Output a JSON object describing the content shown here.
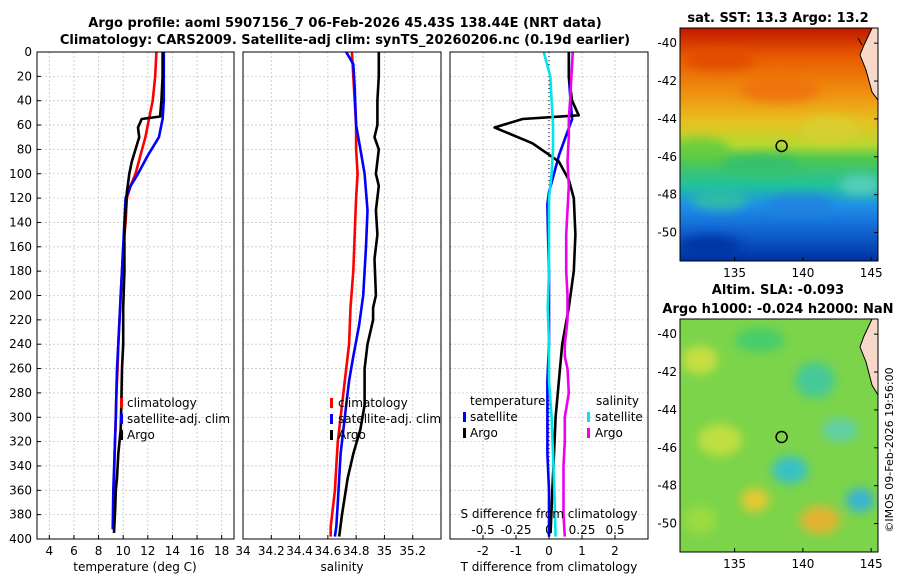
{
  "header": {
    "title_line1": "Argo profile: aoml 5907156_7 06-Feb-2026 45.43S 138.44E (NRT data)",
    "title_line2": "Climatology: CARS2009. Satellite-adj clim: synTS_20260206.nc (0.19d earlier)"
  },
  "colors": {
    "climatology": "#ff0000",
    "satellite": "#0000ff",
    "argo": "#000000",
    "temp_diff_satellite": "#0000ff",
    "sal_diff_satellite": "#00e5ee",
    "sal_diff_argo": "#ee00ee"
  },
  "chart_data": [
    {
      "type": "line",
      "id": "temperature",
      "xlabel": "temperature (deg C)",
      "ylabel": "",
      "xlim": [
        3,
        19
      ],
      "ylim": [
        400,
        0
      ],
      "xticks": [
        4,
        6,
        8,
        10,
        12,
        14,
        16,
        18
      ],
      "yticks": [
        0,
        20,
        40,
        60,
        80,
        100,
        120,
        140,
        160,
        180,
        200,
        220,
        240,
        260,
        280,
        300,
        320,
        340,
        360,
        380,
        400
      ],
      "grid": true,
      "legend": [
        "climatology",
        "satellite-adj. clim",
        "Argo"
      ],
      "legend_position": "bottom-center",
      "series": [
        {
          "name": "climatology",
          "color": "#ff0000",
          "x": [
            12.7,
            12.6,
            12.4,
            12.1,
            11.8,
            11.4,
            11.0,
            10.6,
            10.3,
            10.2,
            10.0,
            9.9,
            9.8,
            9.7,
            9.6,
            9.55,
            9.45,
            9.4,
            9.3,
            9.25,
            9.2
          ],
          "depth": [
            0,
            20,
            40,
            55,
            70,
            85,
            100,
            110,
            120,
            140,
            160,
            180,
            200,
            220,
            240,
            260,
            280,
            300,
            330,
            360,
            392
          ]
        },
        {
          "name": "satellite-adj. clim",
          "color": "#0000ff",
          "x": [
            13.3,
            13.3,
            13.3,
            13.2,
            12.9,
            12.0,
            11.2,
            10.6,
            10.2,
            10.1,
            10.0,
            9.9,
            9.8,
            9.7,
            9.6,
            9.5,
            9.45,
            9.4,
            9.3,
            9.2,
            9.15
          ],
          "depth": [
            0,
            20,
            40,
            55,
            70,
            85,
            100,
            110,
            120,
            140,
            160,
            180,
            200,
            220,
            240,
            260,
            280,
            300,
            330,
            360,
            392
          ]
        },
        {
          "name": "Argo",
          "color": "#000000",
          "x": [
            13.2,
            13.2,
            13.1,
            13.0,
            11.5,
            11.2,
            11.3,
            11.0,
            10.7,
            10.5,
            10.3,
            10.2,
            10.1,
            10.1,
            10.0,
            10.0,
            9.9,
            9.85,
            9.8,
            9.6,
            9.5,
            9.4,
            9.35,
            9.3,
            9.25
          ],
          "depth": [
            0,
            20,
            40,
            53,
            55,
            62,
            70,
            80,
            90,
            100,
            115,
            130,
            150,
            180,
            210,
            240,
            260,
            290,
            310,
            330,
            350,
            360,
            375,
            385,
            395
          ]
        }
      ]
    },
    {
      "type": "line",
      "id": "salinity",
      "xlabel": "salinity",
      "xlim": [
        34,
        35.4
      ],
      "ylim": [
        400,
        0
      ],
      "xticks": [
        34,
        34.2,
        34.4,
        34.6,
        34.8,
        35,
        35.2
      ],
      "grid": true,
      "legend": [
        "climatology",
        "satellite-adj. clim",
        "Argo"
      ],
      "legend_position": "bottom-center",
      "series": [
        {
          "name": "climatology",
          "color": "#ff0000",
          "x": [
            34.77,
            34.78,
            34.79,
            34.8,
            34.8,
            34.81,
            34.8,
            34.79,
            34.78,
            34.76,
            34.75,
            34.73,
            34.71,
            34.69,
            34.67,
            34.66,
            34.65,
            34.64,
            34.63,
            34.62,
            34.62
          ],
          "depth": [
            0,
            20,
            40,
            60,
            80,
            100,
            120,
            150,
            180,
            210,
            240,
            260,
            280,
            300,
            320,
            340,
            360,
            370,
            380,
            390,
            398
          ]
        },
        {
          "name": "satellite-adj. clim",
          "color": "#0000ff",
          "x": [
            34.73,
            34.78,
            34.79,
            34.8,
            34.83,
            34.86,
            34.88,
            34.87,
            34.85,
            34.82,
            34.78,
            34.75,
            34.73,
            34.71,
            34.69,
            34.68,
            34.67,
            34.66,
            34.65
          ],
          "depth": [
            0,
            10,
            30,
            60,
            80,
            100,
            130,
            160,
            200,
            225,
            250,
            270,
            290,
            310,
            330,
            350,
            370,
            390,
            398
          ]
        },
        {
          "name": "Argo",
          "color": "#000000",
          "x": [
            34.96,
            34.96,
            34.95,
            34.95,
            34.93,
            34.96,
            34.94,
            34.96,
            34.94,
            34.95,
            34.93,
            34.94,
            34.92,
            34.92,
            34.88,
            34.86,
            34.86,
            34.83,
            34.78,
            34.74,
            34.7,
            34.68
          ],
          "depth": [
            0,
            20,
            40,
            60,
            70,
            80,
            100,
            110,
            130,
            150,
            170,
            200,
            210,
            220,
            240,
            260,
            290,
            310,
            330,
            350,
            380,
            398
          ]
        }
      ]
    },
    {
      "type": "line",
      "id": "difference",
      "xlabel": "T difference from climatology",
      "top_label": "S difference from climatology",
      "xlim": [
        -3,
        3
      ],
      "ylim": [
        400,
        0
      ],
      "xticks": [
        -2,
        -1,
        0,
        1,
        2
      ],
      "sal_xticks": [
        -0.5,
        -0.25,
        0,
        0.25,
        0.5
      ],
      "sal_xtick_labels": [
        "-0.5",
        "-0.25",
        "0",
        "0.25",
        "0.5"
      ],
      "grid": true,
      "legend_temperature": {
        "title": "temperature",
        "items": [
          "satellite",
          "Argo"
        ]
      },
      "legend_salinity": {
        "title": "salinity",
        "items": [
          "satellite",
          "Argo"
        ]
      },
      "series": [
        {
          "name": "T satellite",
          "color": "#0000ff",
          "x": [
            0.6,
            0.6,
            0.65,
            0.7,
            0.5,
            0.3,
            0.15,
            0.0,
            -0.05,
            -0.03,
            0.0,
            0.0,
            0.0,
            -0.05,
            -0.05,
            -0.05,
            0.0,
            0.0,
            0.0
          ],
          "depth": [
            0,
            20,
            40,
            55,
            70,
            85,
            100,
            115,
            125,
            150,
            180,
            210,
            240,
            270,
            300,
            330,
            360,
            380,
            398
          ]
        },
        {
          "name": "T Argo",
          "color": "#000000",
          "x": [
            0.6,
            0.6,
            0.7,
            0.9,
            -0.8,
            -1.65,
            -0.5,
            0.3,
            0.6,
            0.75,
            0.8,
            0.75,
            0.6,
            0.4,
            0.3,
            0.2,
            0.15,
            0.1,
            0.05
          ],
          "depth": [
            0,
            20,
            40,
            52,
            55,
            62,
            75,
            90,
            105,
            120,
            150,
            180,
            210,
            240,
            270,
            300,
            330,
            360,
            395
          ]
        },
        {
          "name": "S satellite",
          "color": "#00e5ee",
          "x": [
            -0.04,
            0.01,
            0.02,
            0.03,
            0.03,
            0.02,
            0.0,
            0.0,
            0.0,
            -0.01,
            0.0,
            0.0,
            0.02,
            0.03,
            0.04,
            0.05
          ],
          "depth": [
            0,
            20,
            40,
            60,
            80,
            100,
            120,
            150,
            180,
            210,
            240,
            270,
            300,
            330,
            360,
            398
          ]
        },
        {
          "name": "S Argo",
          "color": "#ee00ee",
          "x": [
            0.18,
            0.17,
            0.16,
            0.15,
            0.15,
            0.14,
            0.15,
            0.14,
            0.13,
            0.13,
            0.14,
            0.14,
            0.12,
            0.12,
            0.14,
            0.15,
            0.12,
            0.12,
            0.11,
            0.11,
            0.11,
            0.12
          ],
          "depth": [
            0,
            20,
            40,
            55,
            70,
            90,
            110,
            130,
            150,
            180,
            200,
            220,
            240,
            250,
            260,
            280,
            300,
            320,
            340,
            360,
            380,
            398
          ]
        }
      ]
    },
    {
      "type": "heatmap",
      "id": "sst_map",
      "title": "sat. SST: 13.3 Argo: 13.2",
      "xlim": [
        131,
        145.5
      ],
      "ylim": [
        -51.5,
        -39.2
      ],
      "xticks": [
        135,
        140,
        145
      ],
      "yticks": [
        -40,
        -42,
        -44,
        -46,
        -48,
        -50
      ],
      "marker": {
        "lon": 138.44,
        "lat": -45.43
      }
    },
    {
      "type": "heatmap",
      "id": "sla_map",
      "title_line1": "Altim. SLA: -0.093",
      "title_line2": "Argo h1000: -0.024 h2000: NaN",
      "xlim": [
        131,
        145.5
      ],
      "ylim": [
        -51.5,
        -39.2
      ],
      "xticks": [
        135,
        140,
        145
      ],
      "yticks": [
        -40,
        -42,
        -44,
        -46,
        -48,
        -50
      ],
      "marker": {
        "lon": 138.44,
        "lat": -45.43
      }
    }
  ],
  "credit": "©IMOS 09-Feb-2026 19:56:00"
}
